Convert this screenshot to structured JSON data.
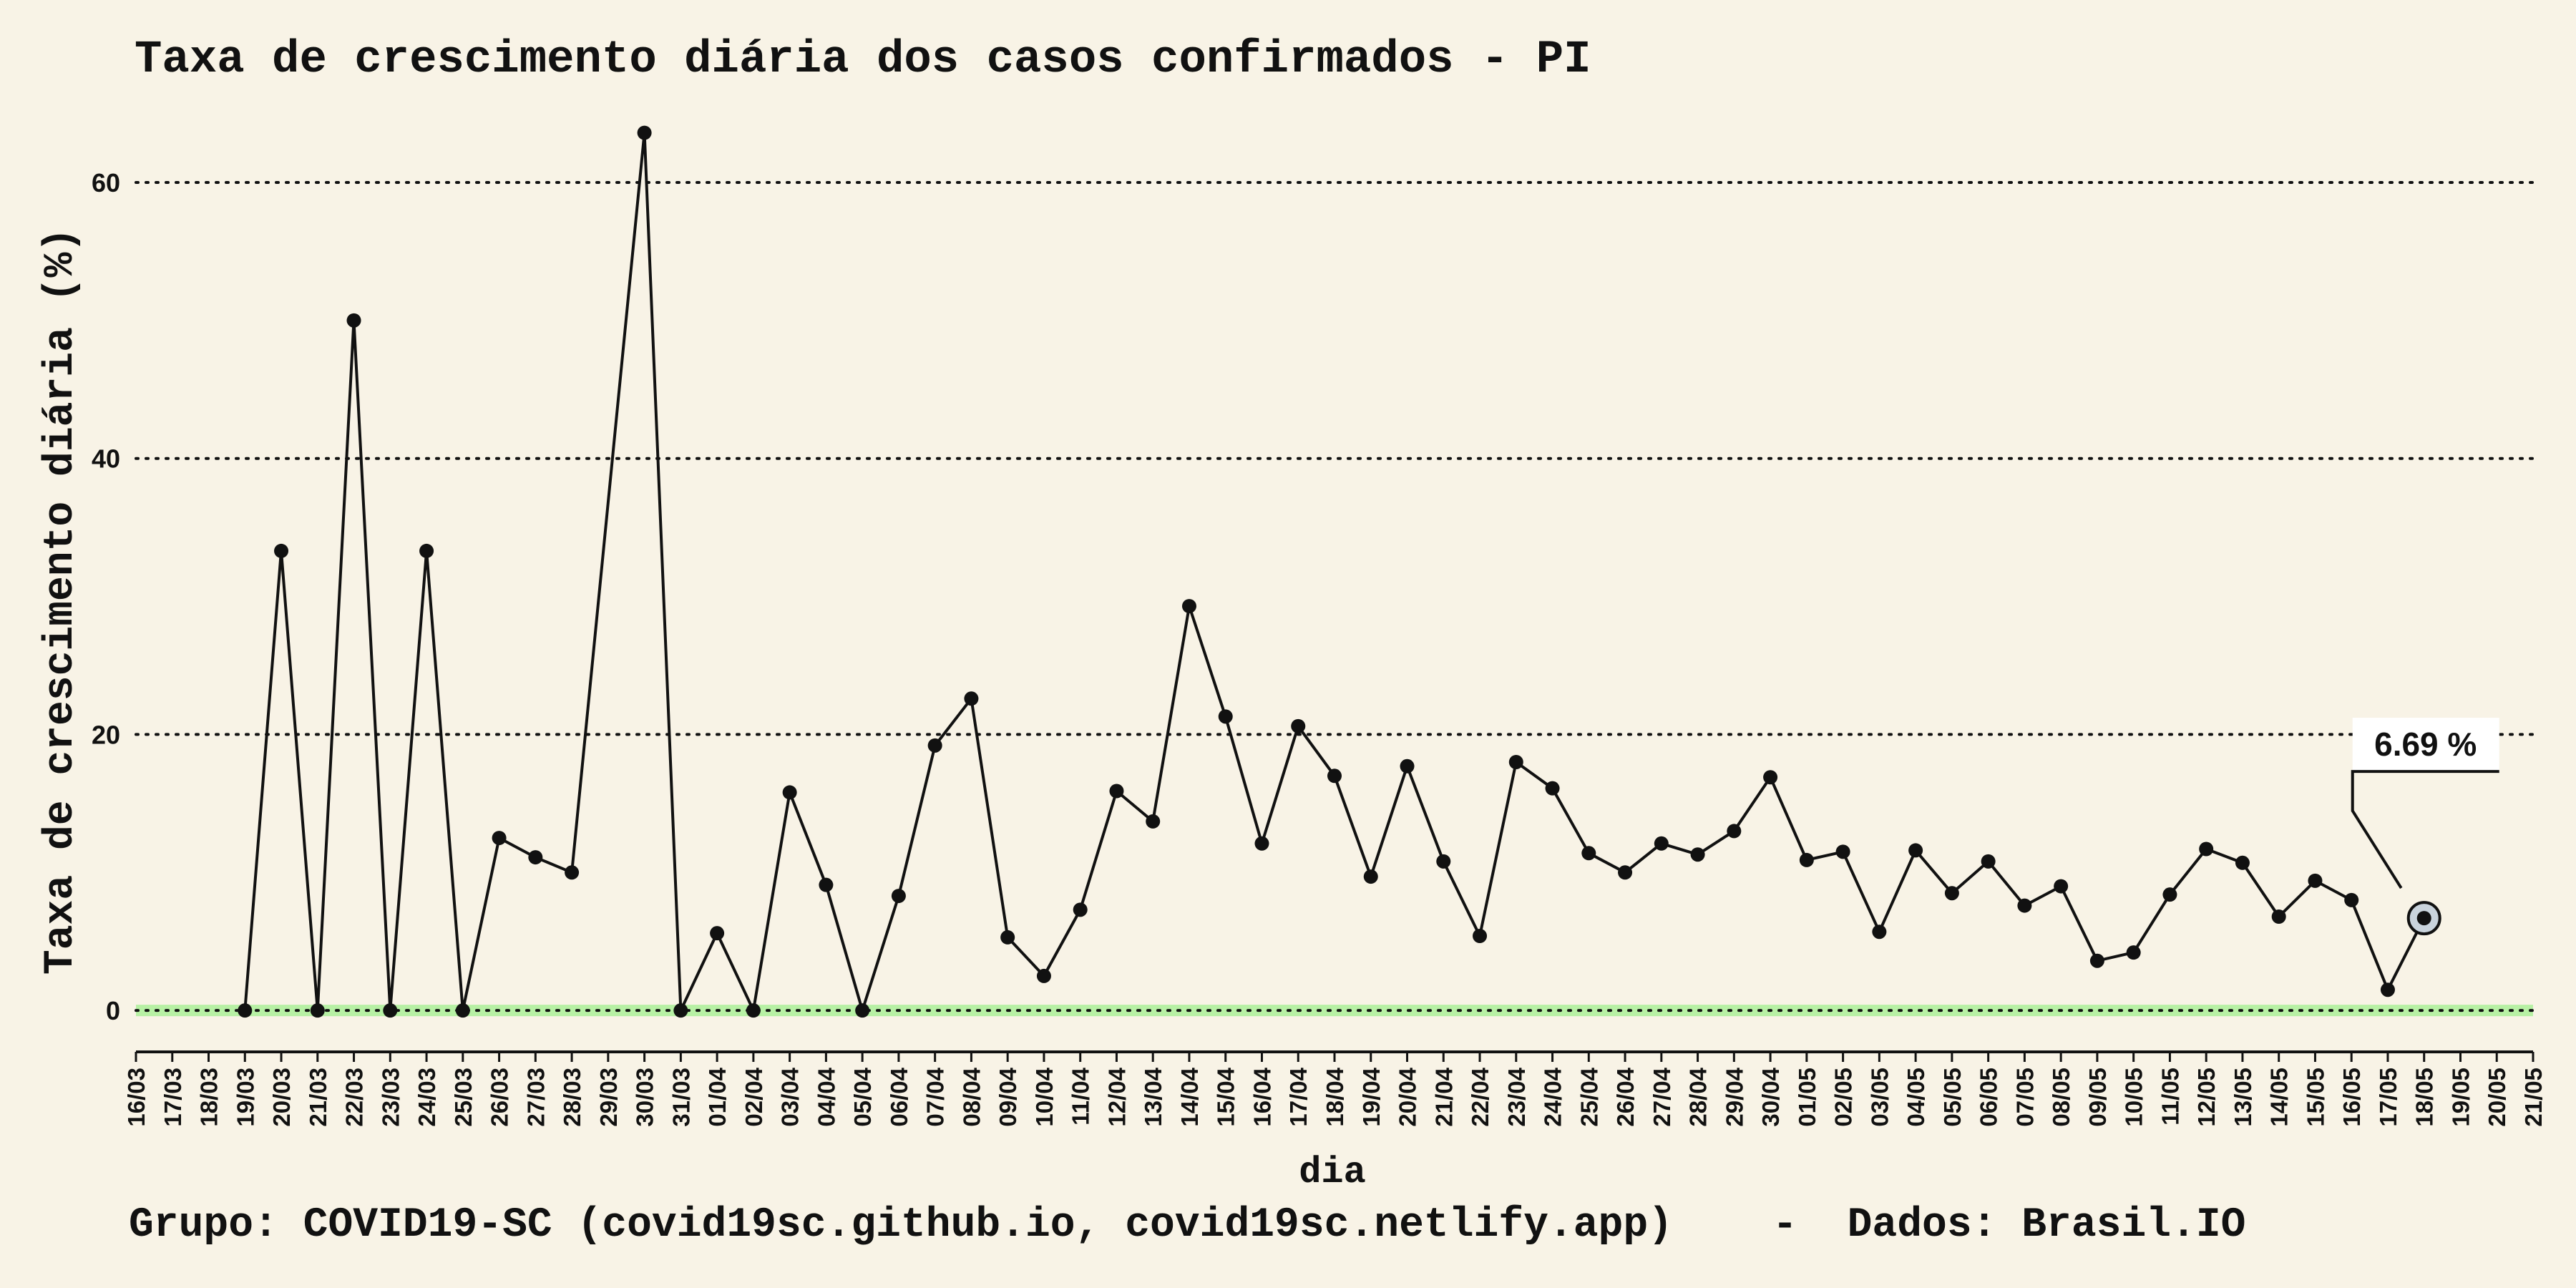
{
  "chart_data": {
    "type": "line",
    "title": "Taxa de crescimento diária dos casos confirmados - PI",
    "xlabel": "dia",
    "ylabel": "Taxa de crescimento diária (%)",
    "caption": "Grupo: COVID19-SC (covid19sc.github.io, covid19sc.netlify.app)    -  Dados: Brasil.IO",
    "ylim": [
      -3,
      67
    ],
    "yticks": [
      0,
      20,
      40,
      60
    ],
    "grid": "horizontal dotted",
    "x_tick_labels": [
      "16/03",
      "17/03",
      "18/03",
      "19/03",
      "20/03",
      "21/03",
      "22/03",
      "23/03",
      "24/03",
      "25/03",
      "26/03",
      "27/03",
      "28/03",
      "29/03",
      "30/03",
      "31/03",
      "01/04",
      "02/04",
      "03/04",
      "04/04",
      "05/04",
      "06/04",
      "07/04",
      "08/04",
      "09/04",
      "10/04",
      "11/04",
      "12/04",
      "13/04",
      "14/04",
      "15/04",
      "16/04",
      "17/04",
      "18/04",
      "19/04",
      "20/04",
      "21/04",
      "22/04",
      "23/04",
      "24/04",
      "25/04",
      "26/04",
      "27/04",
      "28/04",
      "29/04",
      "30/04",
      "01/05",
      "02/05",
      "03/05",
      "04/05",
      "05/05",
      "06/05",
      "07/05",
      "08/05",
      "09/05",
      "10/05",
      "11/05",
      "12/05",
      "13/05",
      "14/05",
      "15/05",
      "16/05",
      "17/05",
      "18/05",
      "19/05",
      "20/05",
      "21/05"
    ],
    "series": [
      {
        "x": [
          "19/03",
          "20/03",
          "21/03",
          "22/03",
          "23/03",
          "24/03",
          "25/03",
          "26/03",
          "27/03",
          "28/03",
          "30/03",
          "31/03",
          "01/04",
          "02/04",
          "03/04",
          "04/04",
          "05/04",
          "06/04",
          "07/04",
          "08/04",
          "09/04",
          "10/04",
          "11/04",
          "12/04",
          "13/04",
          "14/04",
          "15/04",
          "16/04",
          "17/04",
          "18/04",
          "19/04",
          "20/04",
          "21/04",
          "22/04",
          "23/04",
          "24/04",
          "25/04",
          "26/04",
          "27/04",
          "28/04",
          "29/04",
          "30/04",
          "01/05",
          "02/05",
          "03/05",
          "04/05",
          "05/05",
          "06/05",
          "07/05",
          "08/05",
          "09/05",
          "10/05",
          "11/05",
          "12/05",
          "13/05",
          "14/05",
          "15/05",
          "16/05",
          "17/05",
          "18/05"
        ],
        "values": [
          0,
          33.3,
          0,
          50.0,
          0,
          33.3,
          0,
          12.5,
          11.1,
          10.0,
          63.6,
          0,
          5.6,
          0,
          15.8,
          9.1,
          0,
          8.3,
          19.2,
          22.6,
          5.3,
          2.5,
          7.3,
          15.9,
          13.7,
          29.3,
          21.3,
          12.1,
          20.6,
          17.0,
          9.7,
          17.7,
          10.8,
          5.4,
          18.0,
          16.1,
          11.4,
          10.0,
          12.1,
          11.3,
          13.0,
          16.9,
          10.9,
          11.5,
          5.7,
          11.6,
          8.5,
          10.8,
          7.6,
          9.0,
          3.6,
          4.2,
          8.4,
          11.7,
          10.7,
          6.8,
          9.4,
          8.0,
          1.5,
          6.69
        ]
      }
    ],
    "highlight": {
      "x": "18/05",
      "value": 6.69,
      "label": "6.69 %"
    },
    "colors": {
      "background": "#f8f3e6",
      "line": "#111111",
      "zero_band": "#b7f0a4",
      "highlight_fill": "#c9d3dc"
    }
  }
}
